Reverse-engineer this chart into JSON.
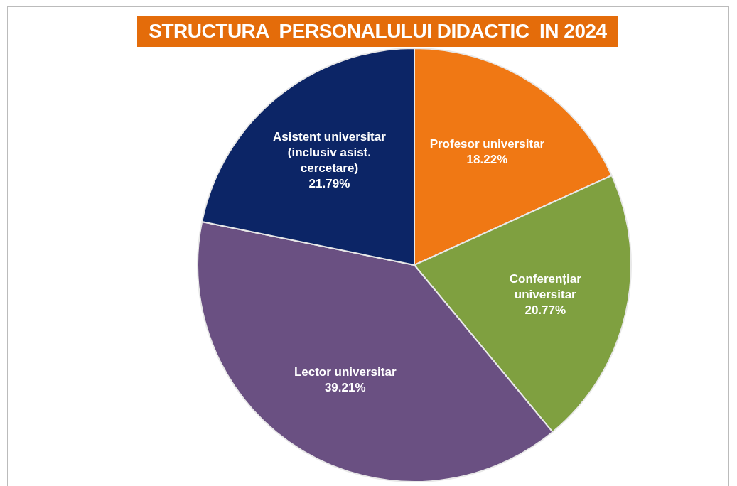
{
  "chart_data": {
    "type": "pie",
    "title": "STRUCTURA  PERSONALULUI DIDACTIC  IN 2024",
    "categories": [
      "Profesor universitar",
      "Conferențiar universitar",
      "Lector universitar",
      "Asistent universitar (inclusiv asist. cercetare)"
    ],
    "values": [
      18.22,
      20.77,
      39.21,
      21.79
    ],
    "value_labels": [
      "18.22%",
      "20.77%",
      "39.21%",
      "21.79%"
    ],
    "colors": [
      "#f07814",
      "#7fa040",
      "#6a5082",
      "#0c2566"
    ],
    "legend": false
  }
}
